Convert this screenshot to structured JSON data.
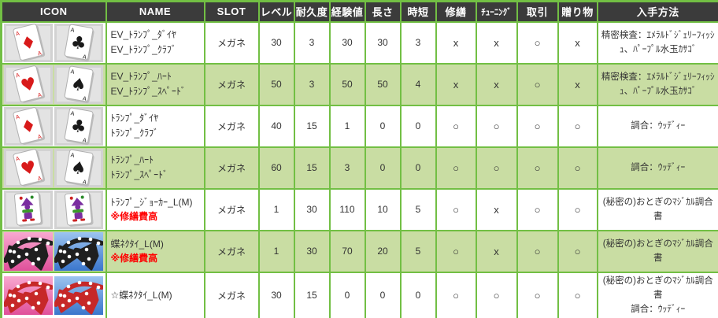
{
  "colors": {
    "border_green": "#72bf44",
    "row_alt_green": "#c9dda3",
    "header_bg": "#3b3b3b",
    "header_text": "#ffffff",
    "note_red": "#ff0000",
    "body_text": "#333333",
    "card_red": "#d81a1a",
    "card_black": "#1a1a1a",
    "joker_purple": "#7a2ea0",
    "bowtie_black": "#1f1f1f",
    "bowtie_red": "#c62828",
    "tile_pink_bg": "#ee6fae",
    "tile_blue_bg": "#4a86d8",
    "tile_gray_bg": "#d2d2d2"
  },
  "table": {
    "headers": [
      "ICON",
      "NAME",
      "SLOT",
      "レベル",
      "耐久度",
      "経験値",
      "長さ",
      "時短",
      "修繕",
      "ﾁｭｰﾆﾝｸﾞ",
      "取引",
      "贈り物",
      "入手方法"
    ],
    "marks": {
      "yes": "○",
      "no": "x"
    },
    "rows": [
      {
        "icons": [
          "card-ace-diamond-icon",
          "card-ace-club-icon"
        ],
        "name_lines": [
          "EV_ﾄﾗﾝﾌﾟ_ﾀﾞｲﾔ",
          "EV_ﾄﾗﾝﾌﾟ_ｸﾗﾌﾞ"
        ],
        "note": "",
        "slot": "メガネ",
        "level": "30",
        "durability": "3",
        "exp": "30",
        "length": "30",
        "time_reduction": "3",
        "repair": "x",
        "tuning": "x",
        "trade": "○",
        "gift": "x",
        "obtain_lines": [
          "精密検査：ｴﾒﾗﾙﾄﾞｼﾞｪﾘｰﾌｨｯｼｭ、ﾊﾟｰﾌﾟﾙ水玉ｶｻｺﾞ"
        ]
      },
      {
        "icons": [
          "card-ace-heart-icon",
          "card-ace-spade-icon"
        ],
        "name_lines": [
          "EV_ﾄﾗﾝﾌﾟ_ﾊｰﾄ",
          "EV_ﾄﾗﾝﾌﾟ_ｽﾍﾟｰﾄﾞ"
        ],
        "note": "",
        "slot": "メガネ",
        "level": "50",
        "durability": "3",
        "exp": "50",
        "length": "50",
        "time_reduction": "4",
        "repair": "x",
        "tuning": "x",
        "trade": "○",
        "gift": "x",
        "obtain_lines": [
          "精密検査：ｴﾒﾗﾙﾄﾞｼﾞｪﾘｰﾌｨｯｼｭ、ﾊﾟｰﾌﾟﾙ水玉ｶｻｺﾞ"
        ]
      },
      {
        "icons": [
          "card-ace-diamond-icon",
          "card-ace-club-icon"
        ],
        "name_lines": [
          "ﾄﾗﾝﾌﾟ_ﾀﾞｲﾔ",
          "ﾄﾗﾝﾌﾟ_ｸﾗﾌﾞ"
        ],
        "note": "",
        "slot": "メガネ",
        "level": "40",
        "durability": "15",
        "exp": "1",
        "length": "0",
        "time_reduction": "0",
        "repair": "○",
        "tuning": "○",
        "trade": "○",
        "gift": "○",
        "obtain_lines": [
          "調合：ｳｯﾃﾞｨｰ"
        ]
      },
      {
        "icons": [
          "card-ace-heart-icon",
          "card-ace-spade-icon"
        ],
        "name_lines": [
          "ﾄﾗﾝﾌﾟ_ﾊｰﾄ",
          "ﾄﾗﾝﾌﾟ_ｽﾍﾟｰﾄﾞ"
        ],
        "note": "",
        "slot": "メガネ",
        "level": "60",
        "durability": "15",
        "exp": "3",
        "length": "0",
        "time_reduction": "0",
        "repair": "○",
        "tuning": "○",
        "trade": "○",
        "gift": "○",
        "obtain_lines": [
          "調合：ｳｯﾃﾞｨｰ"
        ]
      },
      {
        "icons": [
          "card-joker-icon",
          "card-joker-icon"
        ],
        "name_lines": [
          "ﾄﾗﾝﾌﾟ_ｼﾞｮｰｶｰ_L(M)"
        ],
        "note": "※修繕費高",
        "slot": "メガネ",
        "level": "1",
        "durability": "30",
        "exp": "110",
        "length": "10",
        "time_reduction": "5",
        "repair": "○",
        "tuning": "x",
        "trade": "○",
        "gift": "○",
        "obtain_lines": [
          "(秘密の)おとぎのﾏｼﾞｶﾙ調合書"
        ]
      },
      {
        "icons": [
          "bowtie-black-pink-icon",
          "bowtie-black-blue-icon"
        ],
        "name_lines": [
          "蝶ﾈｸﾀｲ_L(M)"
        ],
        "note": "※修繕費高",
        "slot": "メガネ",
        "level": "1",
        "durability": "30",
        "exp": "70",
        "length": "20",
        "time_reduction": "5",
        "repair": "○",
        "tuning": "x",
        "trade": "○",
        "gift": "○",
        "obtain_lines": [
          "(秘密の)おとぎのﾏｼﾞｶﾙ調合書"
        ]
      },
      {
        "icons": [
          "bowtie-red-pink-icon",
          "bowtie-red-blue-icon"
        ],
        "name_lines": [
          "☆蝶ﾈｸﾀｲ_L(M)"
        ],
        "note": "",
        "slot": "メガネ",
        "level": "30",
        "durability": "15",
        "exp": "0",
        "length": "0",
        "time_reduction": "0",
        "repair": "○",
        "tuning": "○",
        "trade": "○",
        "gift": "○",
        "obtain_lines": [
          "(秘密の)おとぎのﾏｼﾞｶﾙ調合書",
          "調合：ｳｯﾃﾞｨｰ"
        ]
      }
    ]
  }
}
